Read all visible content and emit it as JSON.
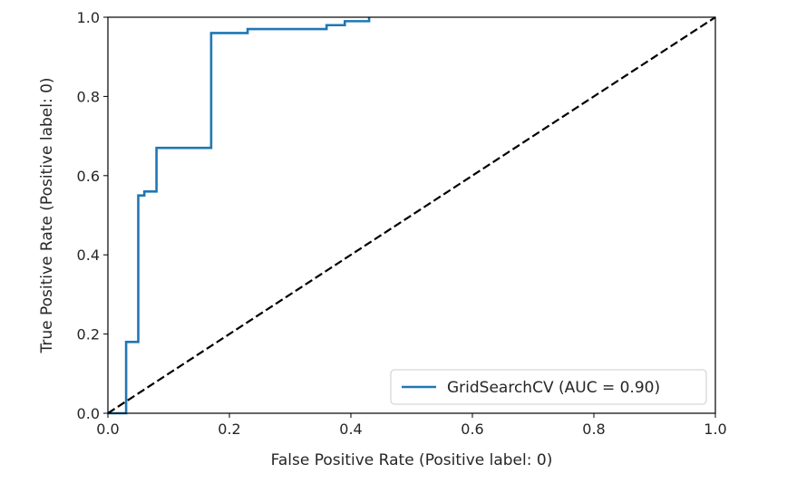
{
  "chart_data": {
    "type": "line",
    "title": "",
    "xlabel": "False Positive Rate (Positive label: 0)",
    "ylabel": "True Positive Rate (Positive label: 0)",
    "xlim": [
      0.0,
      1.0
    ],
    "ylim": [
      0.0,
      1.0
    ],
    "xticks": [
      "0.0",
      "0.2",
      "0.4",
      "0.6",
      "0.8",
      "1.0"
    ],
    "yticks": [
      "0.0",
      "0.2",
      "0.4",
      "0.6",
      "0.8",
      "1.0"
    ],
    "grid": false,
    "legend_position": "bottom-right",
    "series": [
      {
        "name": "GridSearchCV (AUC = 0.90)",
        "color": "#1f77b4",
        "style": "solid",
        "x": [
          0.0,
          0.03,
          0.03,
          0.05,
          0.05,
          0.06,
          0.06,
          0.08,
          0.08,
          0.17,
          0.17,
          0.23,
          0.23,
          0.36,
          0.36,
          0.39,
          0.39,
          0.43,
          0.43
        ],
        "y": [
          0.0,
          0.0,
          0.18,
          0.18,
          0.55,
          0.55,
          0.56,
          0.56,
          0.67,
          0.67,
          0.96,
          0.96,
          0.97,
          0.97,
          0.98,
          0.98,
          0.99,
          0.99,
          1.0
        ]
      },
      {
        "name": "",
        "color": "#000000",
        "style": "dashed",
        "x": [
          0.0,
          1.0
        ],
        "y": [
          0.0,
          1.0
        ]
      }
    ]
  }
}
